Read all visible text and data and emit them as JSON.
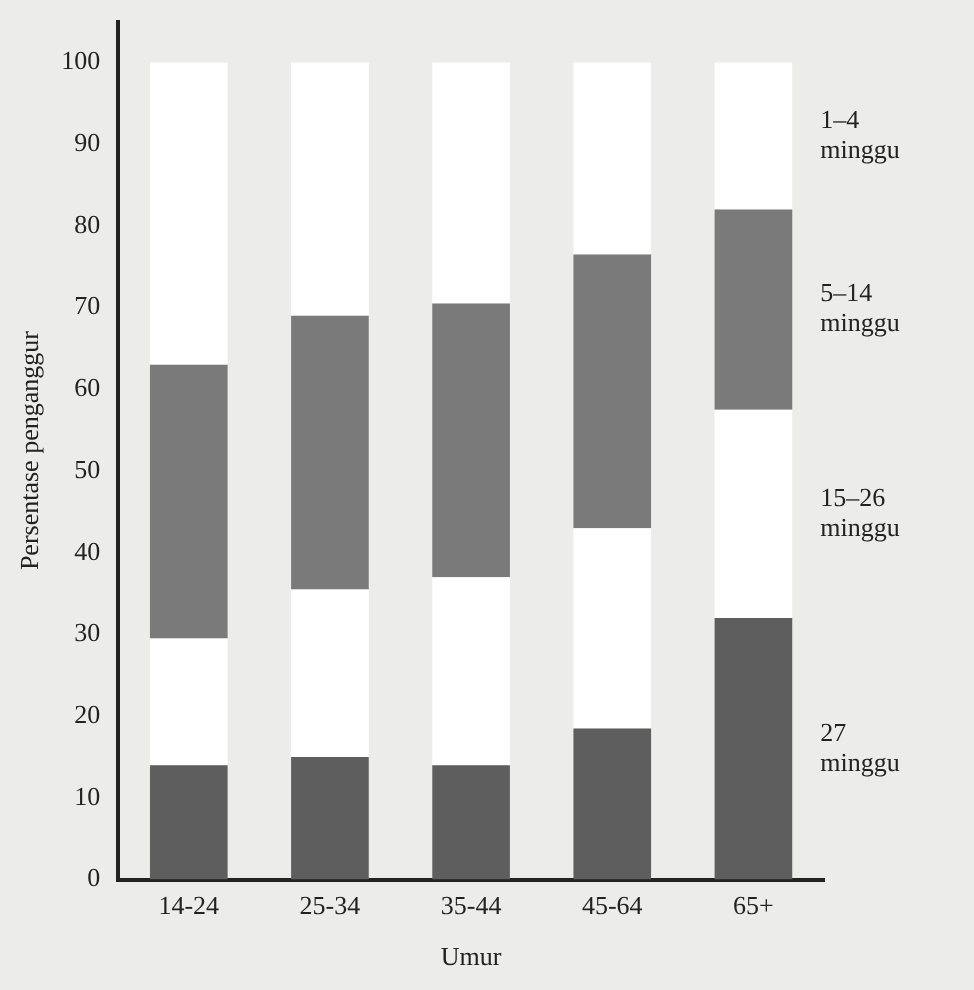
{
  "chart_data": {
    "type": "bar",
    "stacked": true,
    "xlabel": "Umur",
    "ylabel": "Persentase penganggur",
    "categories": [
      "14-24",
      "25-34",
      "35-44",
      "45-64",
      "65+"
    ],
    "series": [
      {
        "name": "27\nminggu",
        "color": "#5e5e5e",
        "values": [
          14,
          15,
          14,
          18.5,
          32
        ]
      },
      {
        "name": "15–26\nminggu",
        "color": "#ffffff",
        "values": [
          15.5,
          20.5,
          23,
          24.5,
          25.5
        ]
      },
      {
        "name": "5–14\nminggu",
        "color": "#7a7a7a",
        "values": [
          33.5,
          33.5,
          33.5,
          33.5,
          24.5
        ]
      },
      {
        "name": "1–4\nminggu",
        "color": "#ffffff",
        "values": [
          37,
          31,
          29.5,
          23.5,
          18
        ]
      }
    ],
    "ylim": [
      0,
      105
    ],
    "yticks": [
      0,
      10,
      20,
      30,
      40,
      50,
      60,
      70,
      80,
      90,
      100
    ],
    "grid": false,
    "legend": false
  }
}
